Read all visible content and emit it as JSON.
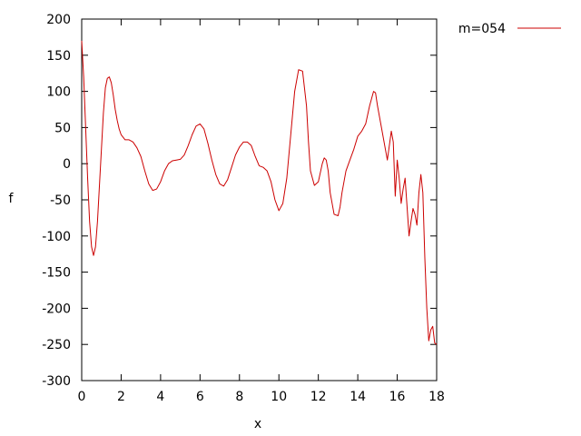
{
  "chart_data": {
    "type": "line",
    "xlabel": "x",
    "ylabel": "f",
    "xlim": [
      0,
      18
    ],
    "ylim": [
      -300,
      200
    ],
    "xticks": [
      0,
      2,
      4,
      6,
      8,
      10,
      12,
      14,
      16,
      18
    ],
    "yticks": [
      -300,
      -250,
      -200,
      -150,
      -100,
      -50,
      0,
      50,
      100,
      150,
      200
    ],
    "grid": false,
    "legend": "top-right outside",
    "series": [
      {
        "name": "m=054",
        "color": "#cc0000",
        "x": [
          0,
          0.1,
          0.2,
          0.3,
          0.4,
          0.5,
          0.6,
          0.7,
          0.8,
          0.9,
          1.0,
          1.1,
          1.2,
          1.3,
          1.4,
          1.5,
          1.6,
          1.7,
          1.8,
          1.9,
          2.0,
          2.2,
          2.4,
          2.6,
          2.8,
          3.0,
          3.2,
          3.4,
          3.6,
          3.8,
          4.0,
          4.2,
          4.4,
          4.6,
          4.8,
          5.0,
          5.2,
          5.4,
          5.6,
          5.8,
          6.0,
          6.2,
          6.4,
          6.6,
          6.8,
          7.0,
          7.2,
          7.4,
          7.6,
          7.8,
          8.0,
          8.2,
          8.4,
          8.6,
          8.8,
          9.0,
          9.2,
          9.4,
          9.6,
          9.8,
          10.0,
          10.2,
          10.4,
          10.6,
          10.8,
          11.0,
          11.2,
          11.4,
          11.5,
          11.6,
          11.8,
          12.0,
          12.2,
          12.3,
          12.4,
          12.5,
          12.6,
          12.8,
          13.0,
          13.1,
          13.2,
          13.4,
          13.6,
          13.8,
          14.0,
          14.2,
          14.4,
          14.6,
          14.8,
          14.9,
          15.0,
          15.2,
          15.4,
          15.5,
          15.6,
          15.7,
          15.8,
          15.9,
          16.0,
          16.1,
          16.2,
          16.3,
          16.4,
          16.5,
          16.6,
          16.7,
          16.8,
          16.9,
          17.0,
          17.1,
          17.2,
          17.3,
          17.4,
          17.5,
          17.6,
          17.7,
          17.8,
          17.9,
          18.0
        ],
        "y": [
          170,
          120,
          50,
          -20,
          -80,
          -115,
          -127,
          -115,
          -80,
          -30,
          20,
          70,
          105,
          118,
          120,
          112,
          95,
          75,
          60,
          48,
          40,
          33,
          33,
          30,
          22,
          10,
          -10,
          -28,
          -37,
          -35,
          -25,
          -10,
          0,
          4,
          5,
          6,
          12,
          25,
          40,
          52,
          55,
          48,
          28,
          5,
          -15,
          -28,
          -31,
          -22,
          -5,
          12,
          23,
          30,
          30,
          25,
          10,
          -3,
          -5,
          -10,
          -25,
          -50,
          -65,
          -55,
          -20,
          40,
          100,
          130,
          128,
          80,
          30,
          -10,
          -30,
          -25,
          0,
          8,
          5,
          -10,
          -40,
          -70,
          -72,
          -60,
          -40,
          -10,
          5,
          20,
          38,
          45,
          55,
          80,
          100,
          98,
          80,
          50,
          20,
          5,
          25,
          45,
          30,
          -45,
          5,
          -20,
          -55,
          -35,
          -20,
          -60,
          -100,
          -80,
          -62,
          -70,
          -85,
          -40,
          -15,
          -40,
          -130,
          -200,
          -245,
          -230,
          -225,
          -248,
          -250
        ]
      }
    ]
  }
}
